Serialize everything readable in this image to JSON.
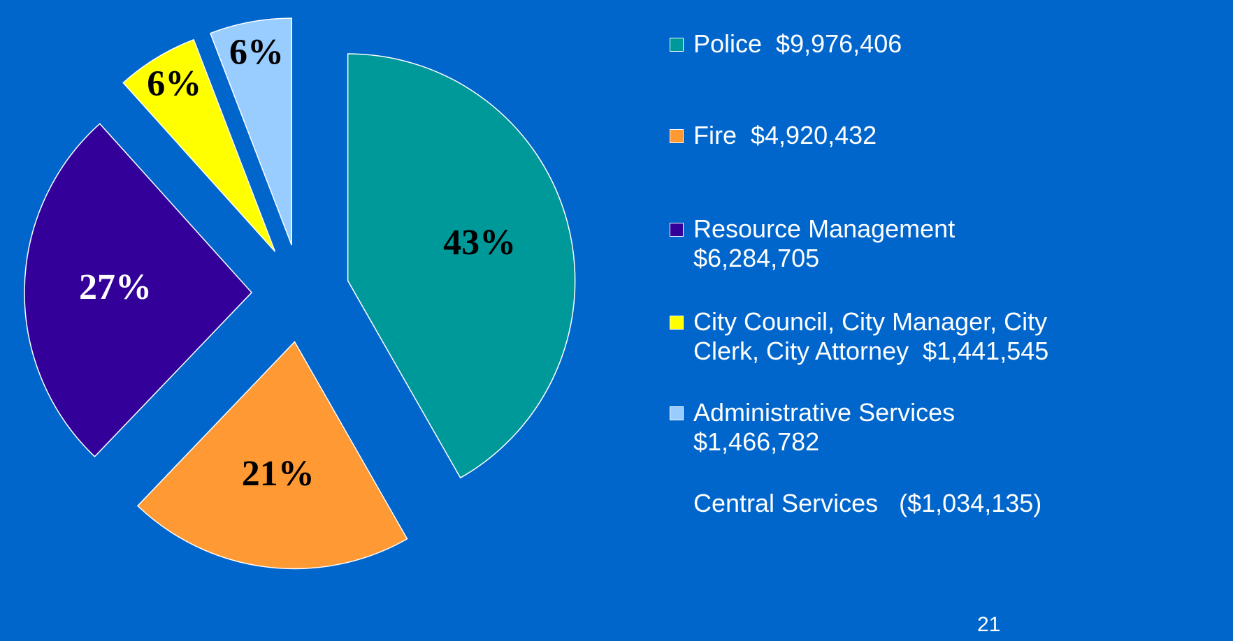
{
  "chart_data": {
    "type": "pie",
    "categories": [
      "Police  $9,976,406",
      "Fire  $4,920,432",
      "Resource Management\n$6,284,705",
      "City Council, City Manager, City\nClerk, City Attorney  $1,441,545",
      "Administrative Services\n$1,466,782"
    ],
    "values": [
      43,
      21,
      27,
      6,
      6
    ],
    "value_labels": [
      "43%",
      "21%",
      "27%",
      "6%",
      "6%"
    ],
    "colors": [
      "#009999",
      "#ff9933",
      "#330099",
      "#ffff00",
      "#99ccff"
    ],
    "label_colors": [
      "#000000",
      "#000000",
      "#ffffff",
      "#000000",
      "#000000"
    ],
    "exploded": true,
    "legend": "right",
    "annotations": [
      "Central Services   ($1,034,135)",
      "21"
    ]
  }
}
